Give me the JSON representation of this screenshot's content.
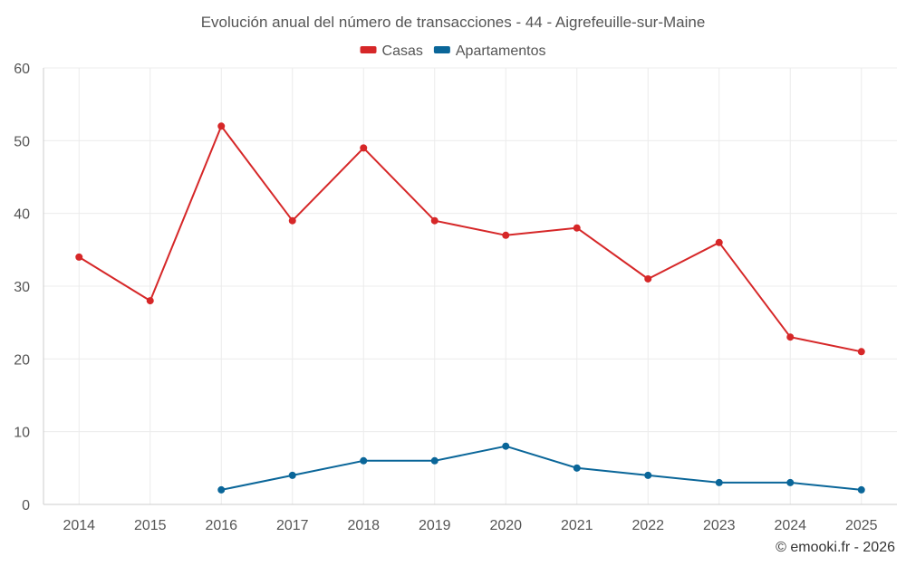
{
  "chart_data": {
    "type": "line",
    "title": "Evolución anual del número de transacciones - 44 - Aigrefeuille-sur-Maine",
    "categories": [
      "2014",
      "2015",
      "2016",
      "2017",
      "2018",
      "2019",
      "2020",
      "2021",
      "2022",
      "2023",
      "2024",
      "2025"
    ],
    "ylim": [
      0,
      60
    ],
    "yticks": [
      0,
      10,
      20,
      30,
      40,
      50,
      60
    ],
    "legend_position": "top-center",
    "grid": true,
    "series": [
      {
        "name": "Casas",
        "color": "#d62728",
        "values": [
          34,
          28,
          52,
          39,
          49,
          39,
          37,
          38,
          31,
          36,
          23,
          21
        ]
      },
      {
        "name": "Apartamentos",
        "color": "#0a6699",
        "values": [
          null,
          null,
          2,
          4,
          6,
          6,
          8,
          5,
          4,
          3,
          3,
          2
        ]
      }
    ]
  },
  "credit": "© emooki.fr - 2026"
}
